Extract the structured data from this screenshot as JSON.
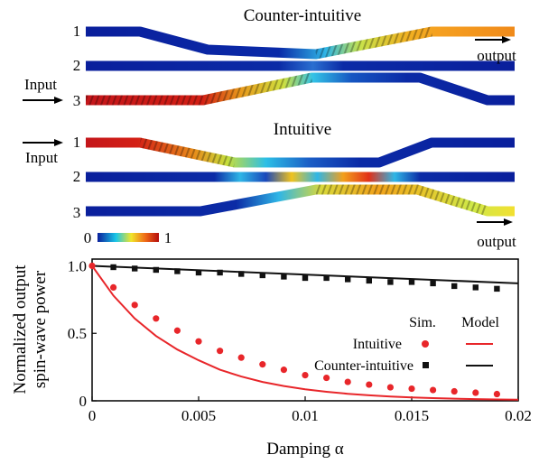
{
  "top_panel": {
    "counter_title": "Counter-intuitive",
    "intuitive_title": "Intuitive",
    "input_label": "Input",
    "output_label": "output",
    "waveguide_labels": [
      "1",
      "2",
      "3"
    ],
    "colorbar": {
      "min_label": "0",
      "max_label": "1"
    }
  },
  "colors": {
    "low": "#0a1f9c",
    "mid": "#19c6e8",
    "high": "#c41212",
    "series_red": "#e8262a",
    "series_black": "#111111"
  },
  "chart_data": {
    "type": "scatter",
    "xlabel": "Damping α",
    "ylabel_lines": [
      "Normalized output",
      "spin-wave power"
    ],
    "xlim": [
      0,
      0.02
    ],
    "ylim": [
      0,
      1.05
    ],
    "xticks": [
      0,
      0.005,
      0.01,
      0.015,
      0.02
    ],
    "xtick_labels": [
      "0",
      "0.005",
      "0.01",
      "0.015",
      "0.02"
    ],
    "yticks": [
      0,
      0.5,
      1.0
    ],
    "ytick_labels": [
      "0",
      "0.5",
      "1.0"
    ],
    "legend": {
      "header_sim": "Sim.",
      "header_model": "Model",
      "entries": [
        "Intuitive",
        "Counter-intuitive"
      ]
    },
    "series": [
      {
        "name": "Intuitive",
        "kind": "sim",
        "marker": "circle",
        "color": "#e8262a",
        "x": [
          0,
          0.001,
          0.002,
          0.003,
          0.004,
          0.005,
          0.006,
          0.007,
          0.008,
          0.009,
          0.01,
          0.011,
          0.012,
          0.013,
          0.014,
          0.015,
          0.016,
          0.017,
          0.018,
          0.019
        ],
        "y": [
          1.0,
          0.84,
          0.71,
          0.61,
          0.52,
          0.44,
          0.37,
          0.32,
          0.27,
          0.23,
          0.19,
          0.17,
          0.14,
          0.12,
          0.1,
          0.09,
          0.08,
          0.07,
          0.06,
          0.05
        ]
      },
      {
        "name": "Counter-intuitive",
        "kind": "sim",
        "marker": "square",
        "color": "#111111",
        "x": [
          0.001,
          0.002,
          0.003,
          0.004,
          0.005,
          0.006,
          0.007,
          0.008,
          0.009,
          0.01,
          0.011,
          0.012,
          0.013,
          0.014,
          0.015,
          0.016,
          0.017,
          0.018,
          0.019
        ],
        "y": [
          0.99,
          0.98,
          0.97,
          0.96,
          0.95,
          0.95,
          0.94,
          0.93,
          0.92,
          0.91,
          0.91,
          0.9,
          0.89,
          0.88,
          0.88,
          0.87,
          0.85,
          0.84,
          0.83
        ]
      },
      {
        "name": "Intuitive",
        "kind": "model",
        "color": "#e8262a",
        "x": [
          0,
          0.001,
          0.002,
          0.003,
          0.004,
          0.005,
          0.006,
          0.007,
          0.008,
          0.009,
          0.01,
          0.011,
          0.012,
          0.013,
          0.014,
          0.015,
          0.016,
          0.017,
          0.018,
          0.019,
          0.02
        ],
        "y": [
          1.0,
          0.78,
          0.61,
          0.48,
          0.38,
          0.3,
          0.23,
          0.18,
          0.14,
          0.11,
          0.085,
          0.067,
          0.052,
          0.041,
          0.032,
          0.025,
          0.02,
          0.016,
          0.013,
          0.01,
          0.008
        ]
      },
      {
        "name": "Counter-intuitive",
        "kind": "model",
        "color": "#111111",
        "x": [
          0,
          0.02
        ],
        "y": [
          1.0,
          0.87
        ]
      }
    ]
  }
}
